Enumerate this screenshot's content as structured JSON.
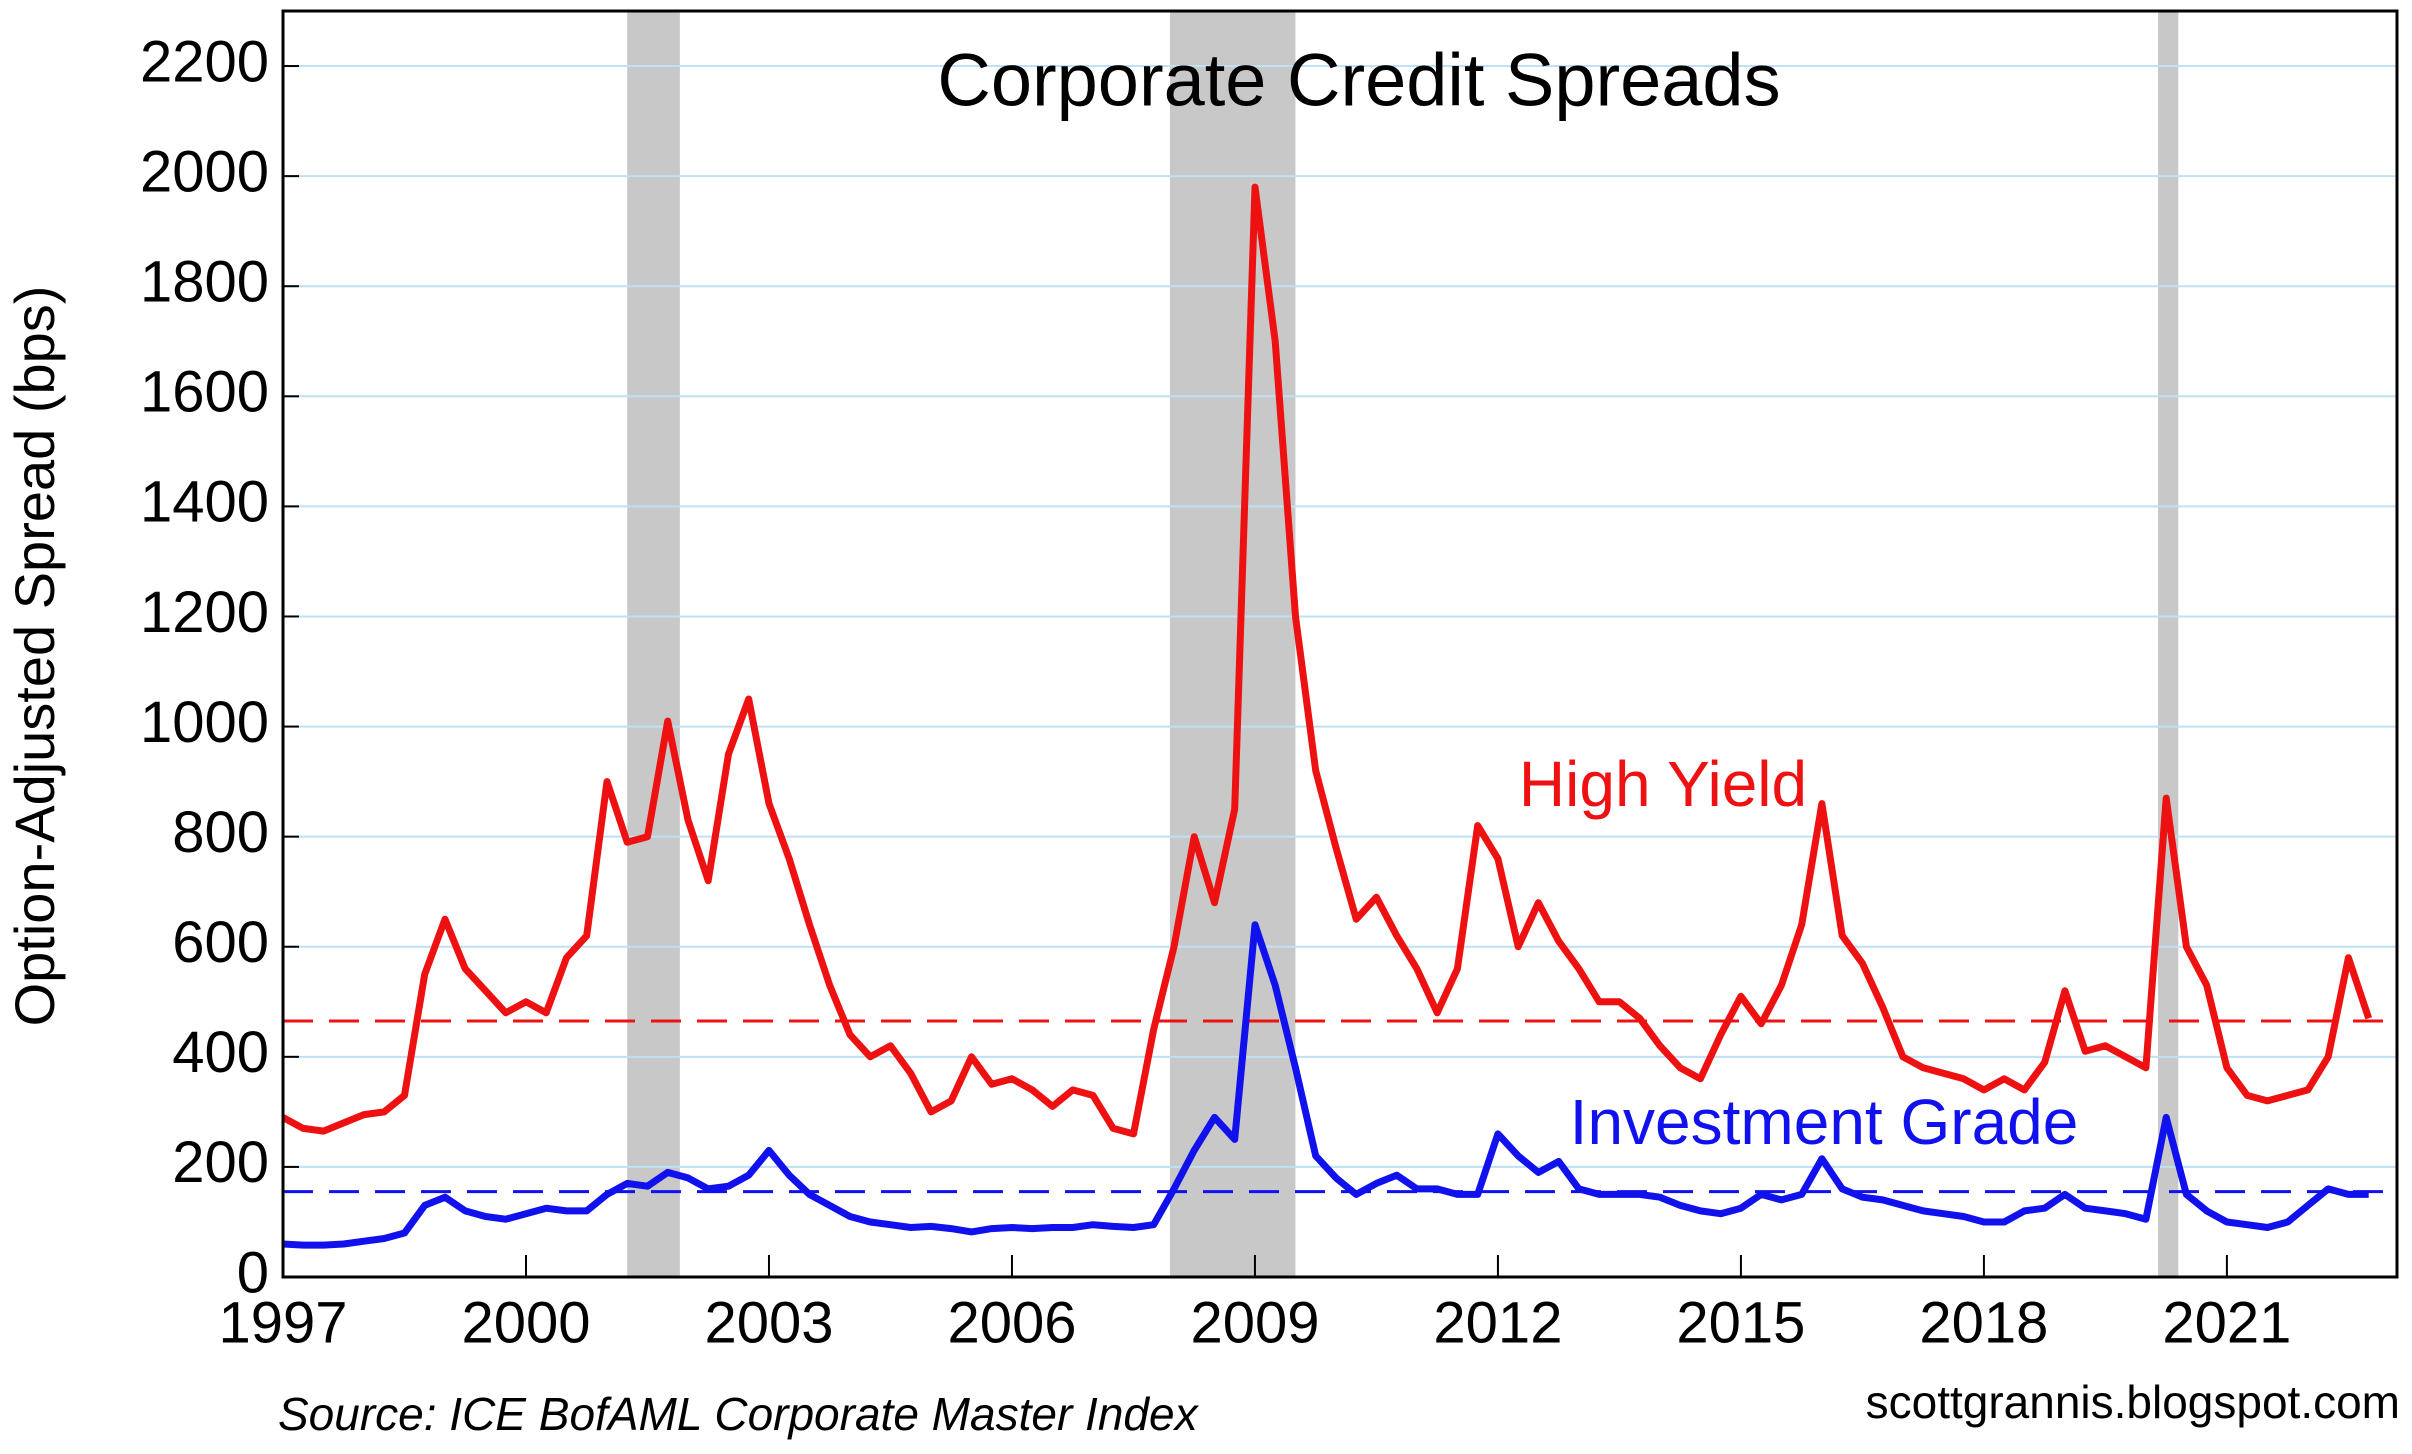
{
  "chart_data": {
    "type": "line",
    "title": "Corporate Credit Spreads",
    "y_label": "Option-Adjusted Spread (bps)",
    "source": "Source: ICE BofAML Corporate Master Index",
    "credit": "scottgrannis.blogspot.com",
    "xlim": [
      1997,
      2023.1
    ],
    "xticks": [
      1997,
      2000,
      2003,
      2006,
      2009,
      2012,
      2015,
      2018,
      2021
    ],
    "ylim": [
      0,
      2300
    ],
    "yticks": [
      0,
      200,
      400,
      600,
      800,
      1000,
      1200,
      1400,
      1600,
      1800,
      2000,
      2200
    ],
    "grid": true,
    "shaded_ranges": [
      [
        2001.25,
        2001.9
      ],
      [
        2007.95,
        2009.5
      ],
      [
        2020.15,
        2020.4
      ]
    ],
    "reference_lines": [
      {
        "value": 465,
        "color": "#ee1111"
      },
      {
        "value": 155,
        "color": "#1111ee"
      }
    ],
    "x": [
      1997,
      1997.25,
      1997.5,
      1997.75,
      1998,
      1998.25,
      1998.5,
      1998.75,
      1999,
      1999.25,
      1999.5,
      1999.75,
      2000,
      2000.25,
      2000.5,
      2000.75,
      2001,
      2001.25,
      2001.5,
      2001.75,
      2002,
      2002.25,
      2002.5,
      2002.75,
      2003,
      2003.25,
      2003.5,
      2003.75,
      2004,
      2004.25,
      2004.5,
      2004.75,
      2005,
      2005.25,
      2005.5,
      2005.75,
      2006,
      2006.25,
      2006.5,
      2006.75,
      2007,
      2007.25,
      2007.5,
      2007.75,
      2008,
      2008.25,
      2008.5,
      2008.75,
      2009,
      2009.25,
      2009.5,
      2009.75,
      2010,
      2010.25,
      2010.5,
      2010.75,
      2011,
      2011.25,
      2011.5,
      2011.75,
      2012,
      2012.25,
      2012.5,
      2012.75,
      2013,
      2013.25,
      2013.5,
      2013.75,
      2014,
      2014.25,
      2014.5,
      2014.75,
      2015,
      2015.25,
      2015.5,
      2015.75,
      2016,
      2016.25,
      2016.5,
      2016.75,
      2017,
      2017.25,
      2017.5,
      2017.75,
      2018,
      2018.25,
      2018.5,
      2018.75,
      2019,
      2019.25,
      2019.5,
      2019.75,
      2020,
      2020.25,
      2020.5,
      2020.75,
      2021,
      2021.25,
      2021.5,
      2021.75,
      2022,
      2022.25,
      2022.5,
      2022.75
    ],
    "series": [
      {
        "name": "High Yield",
        "color": "#ee1111",
        "values": [
          290,
          270,
          265,
          280,
          295,
          300,
          330,
          550,
          650,
          560,
          520,
          480,
          500,
          480,
          580,
          620,
          900,
          790,
          800,
          1010,
          830,
          720,
          950,
          1050,
          860,
          760,
          640,
          530,
          440,
          400,
          420,
          370,
          300,
          320,
          400,
          350,
          360,
          340,
          310,
          340,
          330,
          270,
          260,
          450,
          600,
          800,
          680,
          850,
          1980,
          1700,
          1200,
          920,
          780,
          650,
          690,
          620,
          560,
          480,
          560,
          820,
          760,
          600,
          680,
          610,
          560,
          500,
          500,
          470,
          420,
          380,
          360,
          440,
          510,
          460,
          530,
          640,
          860,
          620,
          570,
          490,
          400,
          380,
          370,
          360,
          340,
          360,
          340,
          390,
          520,
          410,
          420,
          400,
          380,
          870,
          600,
          530,
          380,
          330,
          320,
          330,
          340,
          400,
          580,
          470
        ]
      },
      {
        "name": "Investment Grade",
        "color": "#1111ee",
        "values": [
          60,
          58,
          58,
          60,
          65,
          70,
          80,
          130,
          145,
          120,
          110,
          105,
          115,
          125,
          120,
          120,
          150,
          170,
          165,
          190,
          180,
          160,
          165,
          185,
          230,
          185,
          150,
          130,
          110,
          100,
          95,
          90,
          92,
          88,
          82,
          88,
          90,
          88,
          90,
          90,
          95,
          92,
          90,
          95,
          160,
          230,
          290,
          250,
          640,
          530,
          380,
          220,
          180,
          150,
          170,
          185,
          160,
          160,
          150,
          150,
          260,
          220,
          190,
          210,
          160,
          150,
          150,
          150,
          145,
          130,
          120,
          115,
          125,
          150,
          140,
          150,
          215,
          160,
          145,
          140,
          130,
          120,
          115,
          110,
          100,
          100,
          120,
          125,
          150,
          125,
          120,
          115,
          105,
          290,
          150,
          120,
          100,
          95,
          90,
          100,
          130,
          160,
          150,
          150
        ]
      }
    ]
  }
}
